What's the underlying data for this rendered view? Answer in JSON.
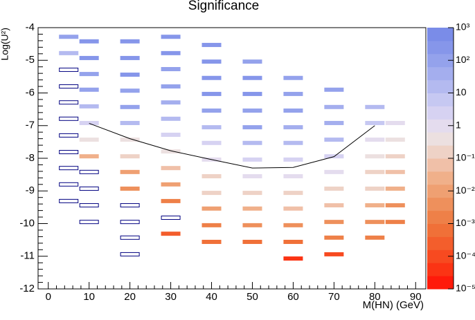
{
  "chart_data": {
    "type": "heatmap",
    "title": "Significance",
    "x_label": "M(HN) (GeV)",
    "y_label": "Log(U²)",
    "xlim": [
      -2.5,
      92.5
    ],
    "ylim": [
      -12,
      -4
    ],
    "xticks": [
      0,
      10,
      20,
      30,
      40,
      50,
      60,
      70,
      80,
      90
    ],
    "yticks": [
      -4,
      -5,
      -6,
      -7,
      -8,
      -9,
      -10,
      -11,
      -12
    ],
    "zlim": [
      1e-05,
      1000
    ],
    "zscale": "log",
    "zticks": [
      {
        "value": 1000,
        "label": "10³"
      },
      {
        "value": 100,
        "label": "10²"
      },
      10,
      1,
      {
        "value": 0.1,
        "label": "10⁻¹"
      },
      {
        "value": 0.01,
        "label": "10⁻²"
      },
      {
        "value": 0.001,
        "label": "10⁻³"
      },
      {
        "value": 0.0001,
        "label": "10⁻⁴"
      },
      {
        "value": 1e-05,
        "label": "10⁻⁵"
      }
    ],
    "palette": [
      "#ff1a0a",
      "#fb3414",
      "#f74a20",
      "#f35e2c",
      "#f07038",
      "#ee8048",
      "#ee905c",
      "#efa072",
      "#f0b08a",
      "#f0c0a8",
      "#eed2c6",
      "#ece0e0",
      "#e4dcee",
      "#d6d2f2",
      "#c6c8f2",
      "#b4baf0",
      "#a4aeee",
      "#94a2ec",
      "#8696ea",
      "#7a8ce8"
    ],
    "empty_color": "#000080",
    "columns": [
      {
        "x": 5,
        "y": [
          -4.28,
          -4.78,
          -5.29,
          -5.8,
          -6.29,
          -6.79,
          -7.3,
          -7.81,
          -8.3,
          -8.8,
          -9.31
        ],
        "z": [
          100,
          20,
          0,
          0,
          0,
          0,
          0,
          0,
          0,
          0,
          0
        ]
      },
      {
        "x": 10,
        "y": [
          -4.42,
          -4.93,
          -5.42,
          -5.9,
          -6.41,
          -6.92,
          -7.43,
          -7.94,
          -8.42,
          -8.93,
          -9.44,
          -9.95
        ],
        "z": [
          200,
          200,
          150,
          70,
          20,
          3,
          0.3,
          0.03,
          0,
          0,
          0,
          0
        ]
      },
      {
        "x": 20,
        "y": [
          -4.42,
          -4.93,
          -5.44,
          -5.93,
          -6.43,
          -6.92,
          -7.43,
          -7.94,
          -8.42,
          -8.93,
          -9.44,
          -9.95,
          -10.43,
          -10.94
        ],
        "z": [
          300,
          300,
          200,
          150,
          80,
          10,
          0.5,
          0.1,
          0.01,
          0.003,
          0,
          0,
          0,
          0
        ]
      },
      {
        "x": 30,
        "y": [
          -4.28,
          -4.78,
          -5.27,
          -5.8,
          -6.29,
          -6.79,
          -7.28,
          -7.79,
          -8.3,
          -8.8,
          -9.31,
          -9.82,
          -10.31
        ],
        "z": [
          300,
          200,
          150,
          100,
          60,
          10,
          3,
          0.5,
          0.05,
          0.01,
          0.002,
          0,
          0.0002
        ]
      },
      {
        "x": 40,
        "y": [
          -4.53,
          -5.04,
          -5.54,
          -6.03,
          -6.54,
          -7.05,
          -7.53,
          -8.04,
          -8.55,
          -9.06,
          -9.54,
          -10.05,
          -10.56
        ],
        "z": [
          200,
          300,
          300,
          300,
          150,
          20,
          3,
          1,
          0.2,
          0.1,
          0.01,
          0.002,
          0.0005
        ]
      },
      {
        "x": 50,
        "y": [
          -5.04,
          -5.54,
          -6.03,
          -6.54,
          -7.05,
          -7.53,
          -8.04,
          -8.55,
          -9.06,
          -9.54,
          -10.05,
          -10.56
        ],
        "z": [
          150,
          200,
          200,
          150,
          80,
          10,
          2,
          0.8,
          0.2,
          0.03,
          0.005,
          0.0007
        ]
      },
      {
        "x": 60,
        "y": [
          -5.54,
          -6.03,
          -6.54,
          -7.05,
          -7.53,
          -8.04,
          -8.55,
          -9.06,
          -9.54,
          -10.05,
          -10.56,
          -11.07
        ],
        "z": [
          100,
          150,
          100,
          50,
          10,
          3,
          0.8,
          0.2,
          0.05,
          0.005,
          0.0008,
          5e-05
        ]
      },
      {
        "x": 70,
        "y": [
          -5.9,
          -6.43,
          -6.92,
          -7.43,
          -7.94,
          -8.42,
          -8.93,
          -9.44,
          -9.95,
          -10.43,
          -10.94
        ],
        "z": [
          80,
          60,
          30,
          10,
          3,
          0.8,
          0.2,
          0.05,
          0.005,
          0.001,
          8e-05
        ]
      },
      {
        "x": 80,
        "y": [
          -6.43,
          -6.92,
          -7.43,
          -7.94,
          -8.42,
          -8.93,
          -9.44,
          -9.95,
          -10.43
        ],
        "z": [
          10,
          5,
          1,
          0.5,
          0.2,
          0.1,
          0.02,
          0.003,
          0.001
        ]
      },
      {
        "x": 85,
        "y": [
          -6.92,
          -7.43,
          -7.94,
          -8.42,
          -8.93,
          -9.44,
          -9.95
        ],
        "z": [
          1,
          0.5,
          0.2,
          0.05,
          0.02,
          0.005,
          0.002
        ]
      }
    ],
    "contour": {
      "x": [
        10,
        20,
        30,
        40,
        50,
        60,
        70,
        80
      ],
      "y": [
        -6.93,
        -7.4,
        -7.77,
        -8.04,
        -8.3,
        -8.28,
        -7.95,
        -7.0
      ],
      "color": "#000000"
    }
  }
}
